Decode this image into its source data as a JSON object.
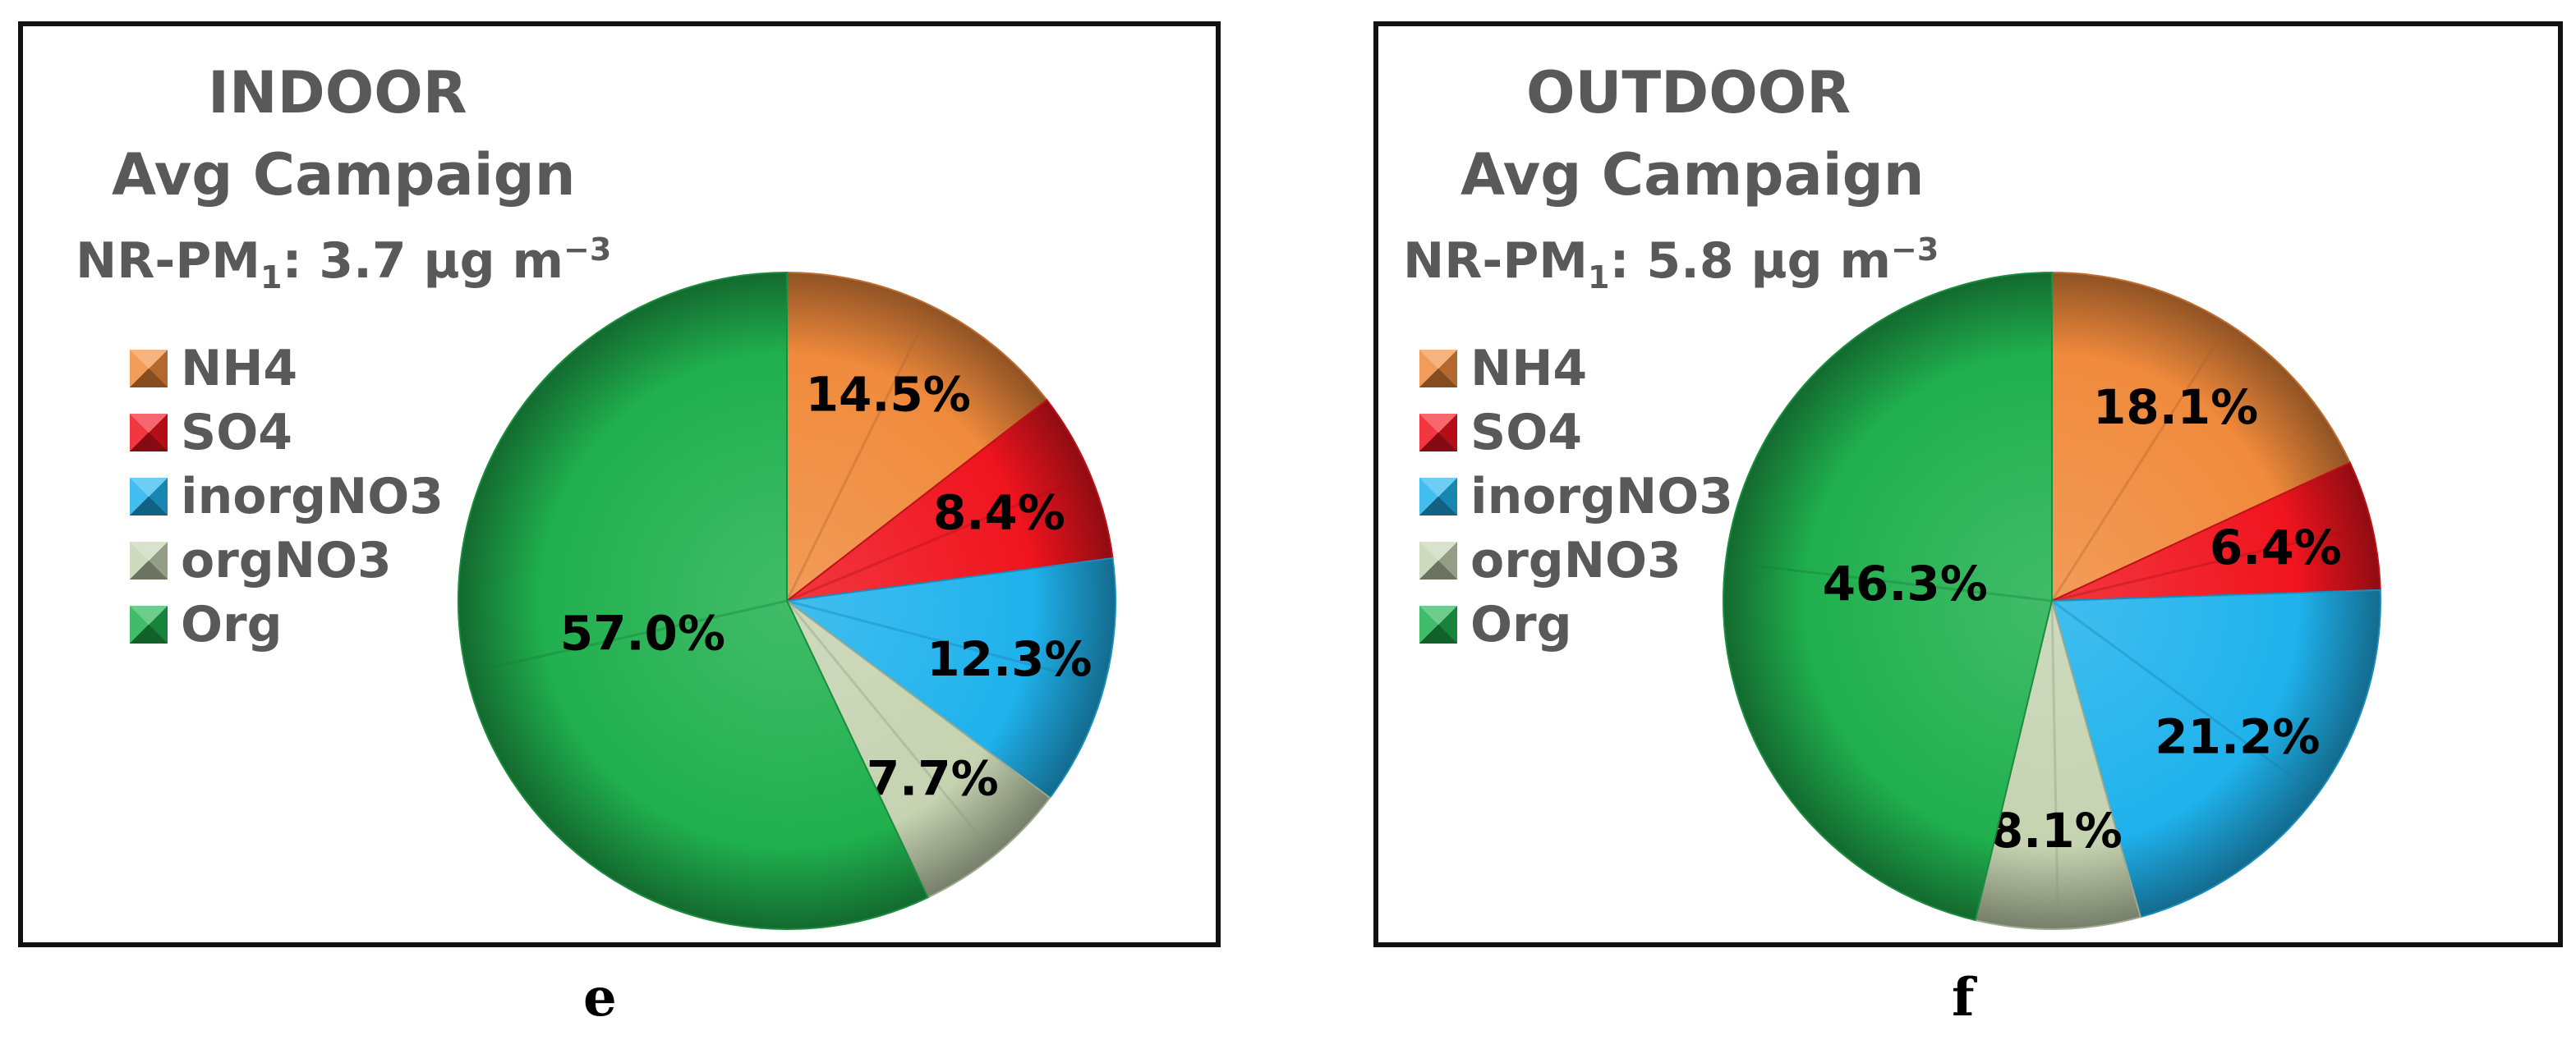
{
  "colors": {
    "NH4": "#f08a3c",
    "SO4": "#f0141e",
    "inorgNO3": "#1fb2ec",
    "orgNO3": "#c5d3b1",
    "Org": "#20b04e"
  },
  "icons": {
    "legend_swatch": "beveled-square-icon"
  },
  "chart_data": [
    {
      "type": "pie",
      "panel_label": "e",
      "title": "INDOOR",
      "subtitle": "Avg Campaign",
      "total": {
        "prefix": "NR-PM",
        "subscript": "1",
        "rest": ": 3.7 µg m",
        "superscript": "−3"
      },
      "legend_position": "left",
      "start_angle_deg": 0,
      "direction": "clockwise",
      "slices": [
        {
          "name": "NH4",
          "value": 14.5,
          "label": "14.5%"
        },
        {
          "name": "SO4",
          "value": 8.4,
          "label": "8.4%"
        },
        {
          "name": "inorgNO3",
          "value": 12.3,
          "label": "12.3%"
        },
        {
          "name": "orgNO3",
          "value": 7.7,
          "label": "7.7%"
        },
        {
          "name": "Org",
          "value": 57.0,
          "label": "57.0%"
        }
      ]
    },
    {
      "type": "pie",
      "panel_label": "f",
      "title": "OUTDOOR",
      "subtitle": "Avg Campaign",
      "total": {
        "prefix": "NR-PM",
        "subscript": "1",
        "rest": ": 5.8 µg m",
        "superscript": "−3"
      },
      "legend_position": "left",
      "start_angle_deg": 0,
      "direction": "clockwise",
      "slices": [
        {
          "name": "NH4",
          "value": 18.1,
          "label": "18.1%"
        },
        {
          "name": "SO4",
          "value": 6.4,
          "label": "6.4%"
        },
        {
          "name": "inorgNO3",
          "value": 21.2,
          "label": "21.2%"
        },
        {
          "name": "orgNO3",
          "value": 8.1,
          "label": "8.1%"
        },
        {
          "name": "Org",
          "value": 46.3,
          "label": "46.3%"
        }
      ]
    }
  ]
}
